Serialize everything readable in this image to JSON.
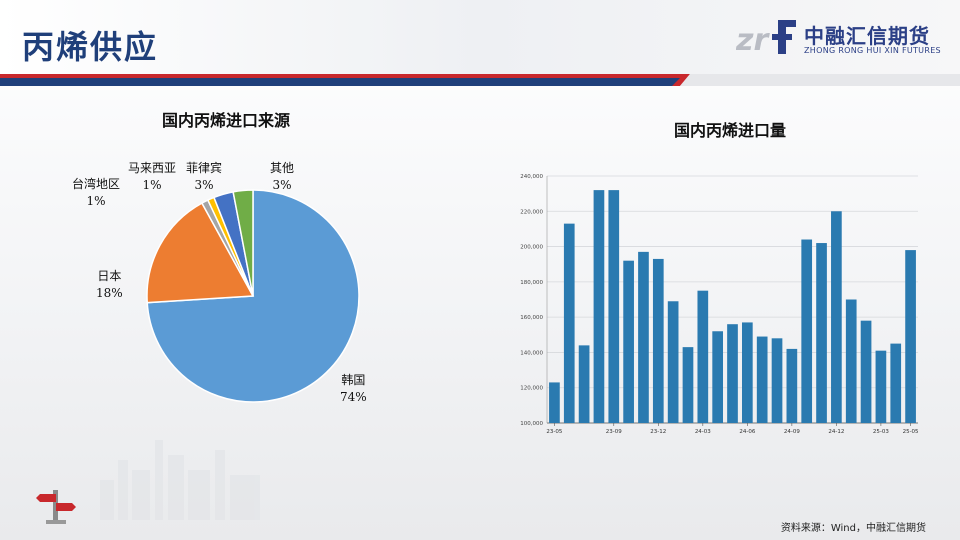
{
  "page": {
    "title": "丙烯供应",
    "logo": {
      "cn": "中融汇信期货",
      "en": "ZHONG RONG HUI XIN FUTURES",
      "mark": "zrf"
    },
    "source": "资料来源：Wind，中融汇信期货",
    "colors": {
      "title": "#1f3f7a",
      "accent_red": "#c8282c",
      "bar": "#2a7ab0"
    }
  },
  "chart_data": [
    {
      "type": "pie",
      "title": "国内丙烯进口来源",
      "slices": [
        {
          "name": "韩国",
          "value": 74,
          "label": "74%",
          "color": "#5b9bd5"
        },
        {
          "name": "日本",
          "value": 18,
          "label": "18%",
          "color": "#ed7d31"
        },
        {
          "name": "台湾地区",
          "value": 1,
          "label": "1%",
          "color": "#a5a5a5"
        },
        {
          "name": "马来西亚",
          "value": 1,
          "label": "1%",
          "color": "#ffc000"
        },
        {
          "name": "菲律宾",
          "value": 3,
          "label": "3%",
          "color": "#4472c4"
        },
        {
          "name": "其他",
          "value": 3,
          "label": "3%",
          "color": "#70ad47"
        }
      ]
    },
    {
      "type": "bar",
      "title": "国内丙烯进口量",
      "categories": [
        "23-05",
        "23-06",
        "23-07",
        "23-08",
        "23-09",
        "23-10",
        "23-11",
        "23-12",
        "24-01",
        "24-02",
        "24-03",
        "24-04",
        "24-05",
        "24-06",
        "24-07",
        "24-08",
        "24-09",
        "24-10",
        "24-11",
        "24-12",
        "25-01",
        "25-02",
        "25-03",
        "25-04",
        "25-05"
      ],
      "values": [
        123000,
        213000,
        144000,
        232000,
        232000,
        192000,
        197000,
        193000,
        169000,
        143000,
        175000,
        152000,
        156000,
        157000,
        149000,
        148000,
        142000,
        204000,
        202000,
        220000,
        170000,
        158000,
        141000,
        145000,
        198000
      ],
      "ylim": [
        100000,
        240000
      ],
      "yticks": [
        100000,
        120000,
        140000,
        160000,
        180000,
        200000,
        220000,
        240000
      ],
      "ytick_labels": [
        "100,000",
        "120,000",
        "140,000",
        "160,000",
        "180,000",
        "200,000",
        "220,000",
        "240,000"
      ],
      "xtick_labels": [
        "23-05",
        "23-09",
        "23-12",
        "24-03",
        "24-06",
        "24-09",
        "24-12",
        "25-03",
        "25-05"
      ],
      "grid": true
    }
  ]
}
